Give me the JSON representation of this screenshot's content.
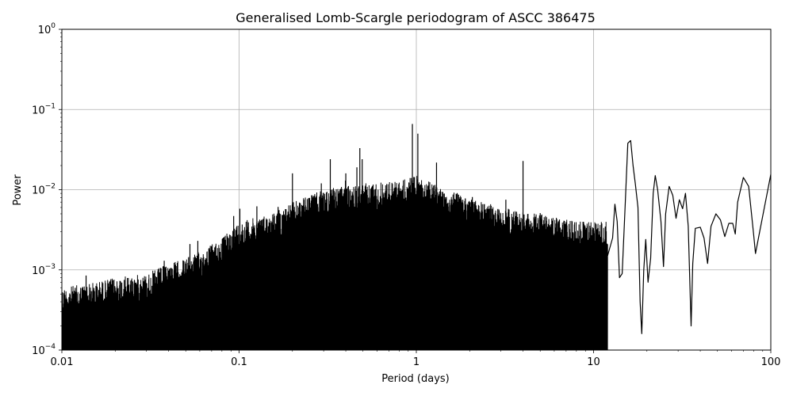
{
  "chart_data": {
    "type": "line",
    "title": "Generalised Lomb-Scargle periodogram of ASCC 386475",
    "xlabel": "Period (days)",
    "ylabel": "Power",
    "xscale": "log",
    "yscale": "log",
    "xlim": [
      0.01,
      100
    ],
    "ylim": [
      0.0001,
      1
    ],
    "grid": true,
    "x_ticks": [
      {
        "value": 0.01,
        "label": "0.01"
      },
      {
        "value": 0.1,
        "label": "0.1"
      },
      {
        "value": 1,
        "label": "1"
      },
      {
        "value": 10,
        "label": "10"
      },
      {
        "value": 100,
        "label": "100"
      }
    ],
    "y_ticks": [
      {
        "value": 0.0001,
        "base": "10",
        "exp": "−4"
      },
      {
        "value": 0.001,
        "base": "10",
        "exp": "−3"
      },
      {
        "value": 0.01,
        "base": "10",
        "exp": "−2"
      },
      {
        "value": 0.1,
        "base": "10",
        "exp": "−1"
      },
      {
        "value": 1,
        "base": "10",
        "exp": "0"
      }
    ],
    "line_color": "#000000",
    "grid_color": "#b0b0b0",
    "series": [
      {
        "envelope": [
          [
            0.01,
            0.0006
          ],
          [
            0.015,
            0.0007
          ],
          [
            0.02,
            0.0008
          ],
          [
            0.03,
            0.0009
          ],
          [
            0.04,
            0.0012
          ],
          [
            0.05,
            0.0014
          ],
          [
            0.06,
            0.0017
          ],
          [
            0.08,
            0.0025
          ],
          [
            0.1,
            0.004
          ],
          [
            0.15,
            0.005
          ],
          [
            0.2,
            0.007
          ],
          [
            0.3,
            0.01
          ],
          [
            0.5,
            0.012
          ],
          [
            0.8,
            0.013
          ],
          [
            1.0,
            0.015
          ],
          [
            1.5,
            0.01
          ],
          [
            2.0,
            0.008
          ],
          [
            3.0,
            0.006
          ],
          [
            5.0,
            0.005
          ],
          [
            8.0,
            0.004
          ],
          [
            10.0,
            0.004
          ],
          [
            12.0,
            0.004
          ]
        ],
        "peaks": [
          [
            0.0137,
            0.00085
          ],
          [
            0.0225,
            0.00075
          ],
          [
            0.0378,
            0.0013
          ],
          [
            0.0528,
            0.0021
          ],
          [
            0.0585,
            0.0023
          ],
          [
            0.0932,
            0.0047
          ],
          [
            0.101,
            0.0058
          ],
          [
            0.126,
            0.0062
          ],
          [
            0.166,
            0.0061
          ],
          [
            0.2,
            0.016
          ],
          [
            0.25,
            0.0079
          ],
          [
            0.291,
            0.012
          ],
          [
            0.327,
            0.024
          ],
          [
            0.398,
            0.013
          ],
          [
            0.4,
            0.016
          ],
          [
            0.462,
            0.019
          ],
          [
            0.48,
            0.033
          ],
          [
            0.495,
            0.024
          ],
          [
            0.675,
            0.0085
          ],
          [
            0.95,
            0.066
          ],
          [
            1.02,
            0.05
          ],
          [
            1.2,
            0.0078
          ],
          [
            1.3,
            0.0218
          ],
          [
            2.07,
            0.0081
          ],
          [
            2.6,
            0.0058
          ],
          [
            3.2,
            0.0075
          ],
          [
            4.0,
            0.0228
          ],
          [
            5.0,
            0.0051
          ]
        ],
        "smooth": [
          [
            12.0,
            0.0015
          ],
          [
            12.8,
            0.0025
          ],
          [
            13.2,
            0.0066
          ],
          [
            13.6,
            0.004
          ],
          [
            14.0,
            0.0008
          ],
          [
            14.5,
            0.0009
          ],
          [
            15.0,
            0.005
          ],
          [
            15.6,
            0.038
          ],
          [
            16.2,
            0.041
          ],
          [
            16.7,
            0.02
          ],
          [
            17.2,
            0.012
          ],
          [
            17.8,
            0.006
          ],
          [
            18.3,
            0.0004
          ],
          [
            18.7,
            0.00016
          ],
          [
            19.2,
            0.001
          ],
          [
            19.7,
            0.0024
          ],
          [
            20.3,
            0.0007
          ],
          [
            21.0,
            0.0014
          ],
          [
            21.7,
            0.009
          ],
          [
            22.3,
            0.015
          ],
          [
            23.0,
            0.01
          ],
          [
            24.0,
            0.004
          ],
          [
            24.8,
            0.0011
          ],
          [
            25.5,
            0.005
          ],
          [
            26.7,
            0.011
          ],
          [
            28.0,
            0.0085
          ],
          [
            29.2,
            0.0044
          ],
          [
            30.5,
            0.0075
          ],
          [
            31.8,
            0.0058
          ],
          [
            33.0,
            0.009
          ],
          [
            34.2,
            0.0035
          ],
          [
            35.0,
            0.0006
          ],
          [
            35.5,
            0.0002
          ],
          [
            36.3,
            0.0012
          ],
          [
            37.5,
            0.0033
          ],
          [
            40.0,
            0.0034
          ],
          [
            42.0,
            0.0025
          ],
          [
            44.0,
            0.0012
          ],
          [
            46.0,
            0.0035
          ],
          [
            49.0,
            0.005
          ],
          [
            52.0,
            0.0042
          ],
          [
            55.0,
            0.0026
          ],
          [
            58.0,
            0.0038
          ],
          [
            61.0,
            0.0038
          ],
          [
            63.0,
            0.0028
          ],
          [
            65.0,
            0.007
          ],
          [
            70.0,
            0.0142
          ],
          [
            75.0,
            0.011
          ],
          [
            80.0,
            0.0028
          ],
          [
            82.0,
            0.0016
          ],
          [
            86.0,
            0.0028
          ],
          [
            92.0,
            0.006
          ],
          [
            100.0,
            0.0155
          ]
        ]
      }
    ]
  }
}
